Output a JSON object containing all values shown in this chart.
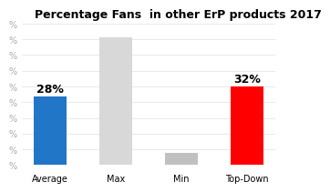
{
  "title": "Percentage Fans  in other ErP products 2017",
  "categories": [
    "Average",
    "Max",
    "Min",
    "Top-Down"
  ],
  "values": [
    28,
    52,
    5,
    32
  ],
  "bar_colors": [
    "#2176c7",
    "#d8d8d8",
    "#c0c0c0",
    "#ff0000"
  ],
  "bar_labels": [
    "28%",
    "",
    "",
    "32%"
  ],
  "ylim": [
    0,
    58
  ],
  "ytick_values": [
    0,
    6.4,
    12.8,
    19.2,
    25.6,
    32,
    38.4,
    44.8,
    51.2,
    57.6
  ],
  "background_color": "#ffffff",
  "title_fontsize": 9,
  "label_fontsize": 9,
  "tick_fontsize": 7,
  "bar_width": 0.5
}
